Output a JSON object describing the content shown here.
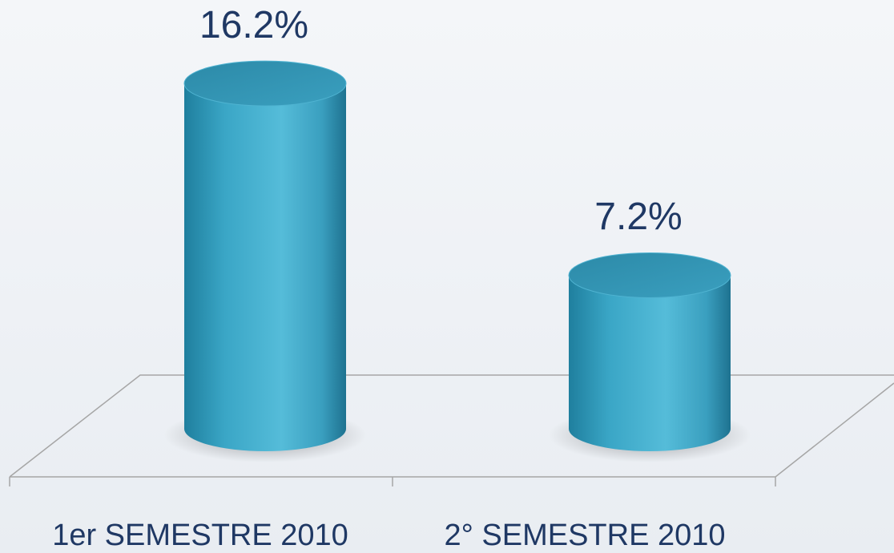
{
  "chart_data": {
    "type": "bar",
    "categories": [
      "1er SEMESTRE 2010",
      "2° SEMESTRE 2010"
    ],
    "values": [
      16.2,
      7.2
    ],
    "value_labels": [
      "16.2%",
      "7.2%"
    ],
    "color": "#3aa6c6"
  }
}
